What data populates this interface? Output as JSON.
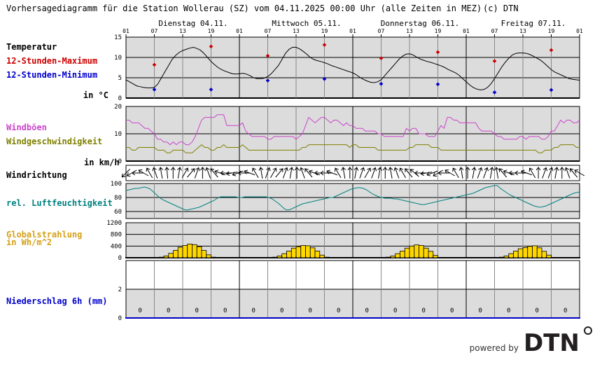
{
  "title": "Vorhersagediagramm für die Station Wollerau (SZ) vom 04.11.2025 00:00 Uhr (alle Zeiten in MEZ)",
  "copyright": "(c) DTN",
  "brand": {
    "powered_by": "powered by",
    "logo_text": "DTN",
    "color": "#231f20"
  },
  "days": [
    "Dienstag 04.11.",
    "Mittwoch 05.11.",
    "Donnerstag 06.11.",
    "Freitag 07.11."
  ],
  "hour_ticks": [
    "01",
    "07",
    "13",
    "19",
    "01",
    "07",
    "13",
    "19",
    "01",
    "07",
    "13",
    "19",
    "01",
    "07",
    "13",
    "19",
    "01"
  ],
  "labels": {
    "temperatur": "Temperatur",
    "tmax": "12-Stunden-Maximum",
    "tmin": "12-Stunden-Minimum",
    "temp_unit": "in °C",
    "windboeen": "Windböen",
    "windgeschw": "Windgeschwindigkeit",
    "wind_unit": "in km/h",
    "windrichtung": "Windrichtung",
    "luftfeuchte": "rel. Luftfeuchtigkeit",
    "global1": "Globalstrahlung",
    "global2": "in Wh/m^2",
    "niederschlag": "Niederschlag 6h (mm)"
  },
  "colors": {
    "tmax": "#cc0000",
    "tmin": "#0000cc",
    "gust": "#cc44cc",
    "wind": "#808000",
    "humidity": "#008080",
    "radiation_fill": "#ffd700",
    "radiation_label": "#d4a017",
    "precip_label": "#0000cc",
    "panel_bg": "#dcdcdc"
  },
  "chart_data": [
    {
      "type": "line",
      "name": "temperature",
      "x_unit": "hours since 04.11. 01:00",
      "ylim": [
        0,
        15
      ],
      "yticks": [
        0,
        5,
        10,
        15
      ],
      "series": [
        {
          "values": [
            4.5,
            4,
            3.5,
            3,
            2.8,
            2.6,
            2.5,
            2.5,
            2.6,
            3.5,
            5,
            6.5,
            8,
            9.5,
            10.5,
            11.2,
            11.7,
            12,
            12.3,
            12.5,
            12.2,
            11.8,
            11,
            10,
            9,
            8.2,
            7.5,
            7,
            6.6,
            6.3,
            6,
            5.9,
            6,
            6.1,
            5.9,
            5.5,
            5,
            4.8,
            4.8,
            4.9,
            5.3,
            6,
            7,
            8,
            9.5,
            11,
            12,
            12.5,
            12.5,
            12.1,
            11.5,
            10.8,
            10,
            9.5,
            9.2,
            9,
            8.7,
            8.4,
            8,
            7.7,
            7.4,
            7.1,
            6.8,
            6.5,
            6.2,
            5.7,
            5.1,
            4.6,
            4.2,
            3.9,
            3.8,
            4,
            4.5,
            5.5,
            6.5,
            7.5,
            8.5,
            9.5,
            10.3,
            10.8,
            10.9,
            10.6,
            10.1,
            9.6,
            9.3,
            9,
            8.8,
            8.5,
            8.2,
            7.9,
            7.5,
            7,
            6.6,
            6.2,
            5.6,
            4.8,
            4,
            3.2,
            2.6,
            2.2,
            2,
            2.1,
            2.6,
            3.5,
            4.8,
            6.2,
            7.6,
            8.8,
            9.8,
            10.6,
            11,
            11.1,
            11.1,
            11,
            10.7,
            10.3,
            9.8,
            9.3,
            8.6,
            7.8,
            7,
            6.4,
            6,
            5.6,
            5.2,
            4.8,
            4.6,
            4.5,
            4.4
          ]
        }
      ],
      "tmax": [
        {
          "x": 6,
          "y": 8.2
        },
        {
          "x": 18,
          "y": 12.7
        },
        {
          "x": 30,
          "y": 10.4
        },
        {
          "x": 42,
          "y": 13.1
        },
        {
          "x": 54,
          "y": 9.8
        },
        {
          "x": 66,
          "y": 11.3
        },
        {
          "x": 78,
          "y": 9.1
        },
        {
          "x": 90,
          "y": 11.8
        }
      ],
      "tmin": [
        {
          "x": 6,
          "y": 2.1
        },
        {
          "x": 18,
          "y": 2.1
        },
        {
          "x": 30,
          "y": 4.3
        },
        {
          "x": 42,
          "y": 4.7
        },
        {
          "x": 54,
          "y": 3.5
        },
        {
          "x": 66,
          "y": 3.4
        },
        {
          "x": 78,
          "y": 1.4
        },
        {
          "x": 90,
          "y": 2.0
        }
      ]
    },
    {
      "type": "line",
      "name": "wind",
      "x_unit": "hours since 04.11. 01:00",
      "ylim": [
        0,
        20
      ],
      "yticks": [
        0,
        10,
        20
      ],
      "series": [
        {
          "name": "Windböen",
          "values": [
            15,
            15,
            14,
            14,
            14,
            13,
            12,
            12,
            11,
            10,
            8,
            8,
            7,
            7,
            6,
            7,
            6,
            7,
            7,
            6,
            6,
            7,
            9,
            12,
            15,
            16,
            16,
            16,
            16,
            17,
            17,
            17,
            13,
            13,
            13,
            13,
            13,
            14,
            11,
            10,
            9,
            9,
            9,
            9,
            9,
            8,
            8,
            9,
            9,
            9,
            9,
            9,
            9,
            9,
            8,
            9,
            10,
            13,
            16,
            15,
            14,
            15,
            16,
            16,
            15,
            14,
            15,
            15,
            14,
            13,
            14,
            13,
            13,
            12,
            12,
            12,
            11,
            11,
            11,
            11,
            10,
            10,
            9,
            9,
            9,
            9,
            9,
            9,
            9,
            12,
            11,
            12,
            12,
            10,
            10,
            10,
            9,
            9,
            9,
            11,
            13,
            12,
            16,
            16,
            15,
            15,
            14,
            14,
            14,
            14,
            14,
            14,
            12,
            11,
            11,
            11,
            11,
            10,
            9,
            9,
            8,
            8,
            8,
            8,
            8,
            9,
            9,
            8,
            9,
            9,
            9,
            9,
            8,
            8,
            9,
            11,
            11,
            13,
            15,
            14,
            15,
            15,
            14,
            14,
            15
          ],
          "note": ""
        },
        {
          "name": "Windgeschwindigkeit",
          "values": [
            5,
            5,
            4,
            4,
            5,
            5,
            5,
            5,
            5,
            5,
            4,
            4,
            4,
            3,
            3,
            4,
            4,
            4,
            4,
            3,
            3,
            3,
            4,
            5,
            6,
            5,
            5,
            4,
            4,
            5,
            5,
            6,
            5,
            5,
            5,
            5,
            5,
            6,
            5,
            4,
            4,
            4,
            4,
            4,
            4,
            4,
            4,
            4,
            4,
            4,
            4,
            4,
            4,
            4,
            4,
            4,
            5,
            5,
            6,
            6,
            6,
            6,
            6,
            6,
            6,
            6,
            6,
            6,
            6,
            6,
            6,
            5,
            6,
            6,
            5,
            5,
            5,
            5,
            5,
            5,
            4,
            4,
            4,
            4,
            4,
            4,
            4,
            4,
            4,
            4,
            5,
            5,
            6,
            6,
            6,
            6,
            6,
            5,
            5,
            5,
            4,
            4,
            4,
            4,
            4,
            4,
            4,
            4,
            4,
            4,
            4,
            4,
            4,
            4,
            4,
            4,
            4,
            4,
            4,
            4,
            4,
            4,
            4,
            4,
            4,
            4,
            4,
            4,
            4,
            4,
            4,
            3,
            3,
            4,
            4,
            4,
            5,
            5,
            6,
            6,
            6,
            6,
            6,
            5,
            5
          ]
        }
      ]
    },
    {
      "type": "line",
      "name": "humidity",
      "x_unit": "hours since 04.11. 01:00",
      "ylim": [
        50,
        100
      ],
      "yticks": [
        60,
        80,
        100
      ],
      "series": [
        {
          "name": "rel. Luftfeuchtigkeit",
          "values": [
            90,
            91,
            92,
            93,
            93,
            94,
            95,
            94,
            92,
            88,
            84,
            80,
            77,
            75,
            73,
            71,
            69,
            67,
            65,
            63,
            62,
            63,
            64,
            65,
            66,
            68,
            70,
            72,
            74,
            76,
            79,
            81,
            81,
            81,
            81,
            81,
            81,
            80,
            80,
            81,
            81,
            81,
            81,
            81,
            81,
            81,
            81,
            80,
            78,
            75,
            72,
            68,
            64,
            62,
            63,
            65,
            67,
            69,
            71,
            72,
            73,
            74,
            75,
            76,
            77,
            78,
            79,
            80,
            80,
            82,
            84,
            86,
            88,
            90,
            92,
            93,
            94,
            94,
            93,
            91,
            88,
            85,
            83,
            81,
            80,
            79,
            79,
            79,
            78,
            78,
            77,
            76,
            75,
            74,
            73,
            72,
            71,
            70,
            70,
            71,
            72,
            73,
            74,
            75,
            76,
            77,
            78,
            79,
            80,
            81,
            82,
            83,
            84,
            85,
            86,
            88,
            90,
            92,
            94,
            95,
            96,
            97,
            97,
            93,
            90,
            87,
            84,
            82,
            80,
            78,
            76,
            74,
            72,
            70,
            68,
            67,
            66,
            67,
            68,
            70,
            72,
            74,
            76,
            78,
            80,
            82,
            84,
            86,
            87,
            88
          ]
        }
      ]
    },
    {
      "type": "bar",
      "name": "radiation",
      "x_unit": "hour slot start, hours since 04.11. 01:00",
      "ylim": [
        0,
        1200
      ],
      "yticks": [
        0,
        400,
        800,
        1200
      ],
      "series": [
        {
          "name": "Globalstrahlung",
          "values": [
            {
              "x": 7,
              "y": 20
            },
            {
              "x": 8,
              "y": 60
            },
            {
              "x": 9,
              "y": 150
            },
            {
              "x": 10,
              "y": 250
            },
            {
              "x": 11,
              "y": 360
            },
            {
              "x": 12,
              "y": 420
            },
            {
              "x": 13,
              "y": 470
            },
            {
              "x": 14,
              "y": 450
            },
            {
              "x": 15,
              "y": 380
            },
            {
              "x": 16,
              "y": 250
            },
            {
              "x": 17,
              "y": 100
            },
            {
              "x": 18,
              "y": 20
            },
            {
              "x": 31,
              "y": 20
            },
            {
              "x": 32,
              "y": 60
            },
            {
              "x": 33,
              "y": 140
            },
            {
              "x": 34,
              "y": 230
            },
            {
              "x": 35,
              "y": 330
            },
            {
              "x": 36,
              "y": 380
            },
            {
              "x": 37,
              "y": 420
            },
            {
              "x": 38,
              "y": 410
            },
            {
              "x": 39,
              "y": 340
            },
            {
              "x": 40,
              "y": 230
            },
            {
              "x": 41,
              "y": 90
            },
            {
              "x": 42,
              "y": 20
            },
            {
              "x": 55,
              "y": 20
            },
            {
              "x": 56,
              "y": 60
            },
            {
              "x": 57,
              "y": 140
            },
            {
              "x": 58,
              "y": 230
            },
            {
              "x": 59,
              "y": 330
            },
            {
              "x": 60,
              "y": 400
            },
            {
              "x": 61,
              "y": 440
            },
            {
              "x": 62,
              "y": 420
            },
            {
              "x": 63,
              "y": 330
            },
            {
              "x": 64,
              "y": 220
            },
            {
              "x": 65,
              "y": 80
            },
            {
              "x": 79,
              "y": 20
            },
            {
              "x": 80,
              "y": 60
            },
            {
              "x": 81,
              "y": 140
            },
            {
              "x": 82,
              "y": 230
            },
            {
              "x": 83,
              "y": 310
            },
            {
              "x": 84,
              "y": 350
            },
            {
              "x": 85,
              "y": 390
            },
            {
              "x": 86,
              "y": 410
            },
            {
              "x": 87,
              "y": 340
            },
            {
              "x": 88,
              "y": 220
            },
            {
              "x": 89,
              "y": 90
            }
          ]
        }
      ]
    },
    {
      "type": "bar",
      "name": "precipitation",
      "ylim": [
        0,
        4
      ],
      "yticks": [
        0,
        2
      ],
      "values": [
        "0",
        "0",
        "0",
        "0",
        "0",
        "0",
        "0",
        "0",
        "0",
        "0",
        "0",
        "0",
        "0",
        "0",
        "0",
        "0"
      ]
    }
  ],
  "wind_direction": {
    "x_unit": "hours since 04.11. 01:00, every 2 h",
    "from_deg": [
      45,
      60,
      90,
      120,
      150,
      160,
      170,
      175,
      180,
      190,
      210,
      220,
      200,
      180,
      160,
      140,
      110,
      90,
      80,
      70,
      90,
      110,
      150,
      170,
      200,
      210,
      220,
      200,
      190,
      180,
      160,
      140,
      110,
      90,
      90,
      110,
      150,
      170,
      180,
      190,
      200,
      210,
      200,
      190,
      180,
      170,
      160,
      150,
      140,
      130,
      90,
      80,
      70,
      60,
      90,
      120,
      150,
      170,
      180,
      190,
      200,
      200,
      190,
      170,
      140,
      110,
      90,
      90,
      110,
      150,
      180,
      200,
      200,
      190,
      180,
      160,
      140,
      120
    ]
  }
}
